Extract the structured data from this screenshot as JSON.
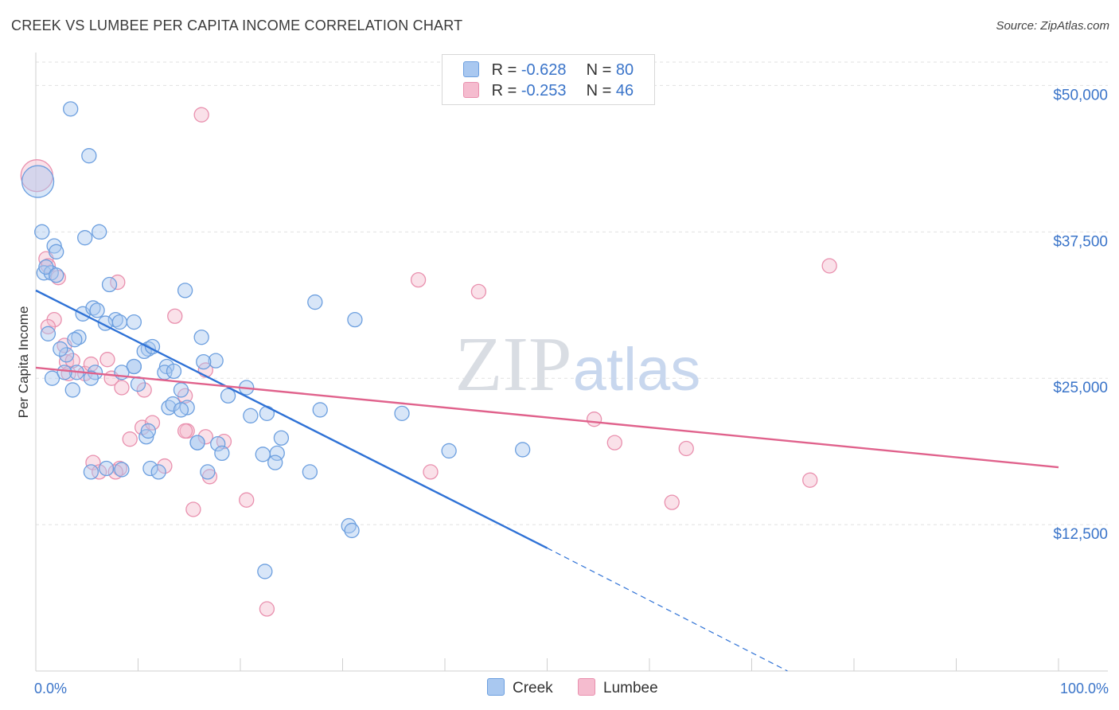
{
  "header": {
    "title": "CREEK VS LUMBEE PER CAPITA INCOME CORRELATION CHART",
    "source": "Source: ZipAtlas.com"
  },
  "legend": {
    "creek": {
      "r_label": "R = ",
      "r_value": "-0.628",
      "n_label": "N = ",
      "n_value": "80",
      "name": "Creek"
    },
    "lumbee": {
      "r_label": "R = ",
      "r_value": "-0.253",
      "n_label": "N = ",
      "n_value": "46",
      "name": "Lumbee"
    }
  },
  "colors": {
    "creek_fill": "#a9c8f0",
    "creek_stroke": "#6c9fdf",
    "creek_line": "#2f72d6",
    "lumbee_fill": "#f5bccf",
    "lumbee_stroke": "#e990ae",
    "lumbee_line": "#e0628c",
    "axis_label": "#3a74c9",
    "grid": "#e1e1e1"
  },
  "chart_data": {
    "type": "scatter",
    "title": "CREEK VS LUMBEE PER CAPITA INCOME CORRELATION CHART",
    "xlabel": "",
    "ylabel": "Per Capita Income",
    "xlim": [
      0,
      100
    ],
    "ylim": [
      0,
      52000
    ],
    "x_ticks_labels": [
      "0.0%",
      "100.0%"
    ],
    "y_ticks": [
      12500,
      25000,
      37500,
      50000
    ],
    "y_tick_labels": [
      "$12,500",
      "$25,000",
      "$37,500",
      "$50,000"
    ],
    "watermark": {
      "zip": "ZIP",
      "atlas": "atlas"
    },
    "series": [
      {
        "name": "Creek",
        "x": [
          0.2,
          0.6,
          3.4,
          1.8,
          5.2,
          6.2,
          4.8,
          2.0,
          0.8,
          1.5,
          1.0,
          2.0,
          7.2,
          14.6,
          27.3,
          31.2,
          4.6,
          5.6,
          7.8,
          8.2,
          6.8,
          9.6,
          16.2,
          6.0,
          4.2,
          3.0,
          3.8,
          11.0,
          12.8,
          10.6,
          9.6,
          9.6,
          8.4,
          5.8,
          4.0,
          1.6,
          2.8,
          3.6,
          5.4,
          10.0,
          12.6,
          17.6,
          13.0,
          14.2,
          14.8,
          22.6,
          27.8,
          21.0,
          20.6,
          18.8,
          15.8,
          13.4,
          15.8,
          10.8,
          11.0,
          14.2,
          17.8,
          23.6,
          24.0,
          23.4,
          22.2,
          30.6,
          22.4,
          5.4,
          6.9,
          16.8,
          8.4,
          11.2,
          12.0,
          26.8,
          35.8,
          40.4,
          47.6,
          16.4,
          18.2,
          30.9,
          2.4,
          1.2,
          11.4,
          13.5
        ],
        "y": [
          41800,
          37500,
          48000,
          36300,
          44000,
          37500,
          37000,
          35800,
          34000,
          34000,
          34500,
          33800,
          33000,
          32500,
          31500,
          30000,
          30500,
          31000,
          30000,
          29800,
          29700,
          29800,
          28500,
          30800,
          28500,
          27000,
          28300,
          27500,
          26000,
          27300,
          26000,
          26000,
          25500,
          25500,
          25500,
          25000,
          25500,
          24000,
          25000,
          24500,
          25500,
          26500,
          22500,
          24000,
          22500,
          22000,
          22300,
          21800,
          24200,
          23500,
          19500,
          22800,
          19500,
          20000,
          20500,
          22300,
          19400,
          18600,
          19900,
          17800,
          18500,
          12400,
          8500,
          17000,
          17300,
          17000,
          17200,
          17300,
          17000,
          17000,
          22000,
          18800,
          18900,
          26400,
          18600,
          12000,
          27500,
          28800,
          27700,
          25600
        ]
      },
      {
        "name": "Lumbee",
        "x": [
          0.1,
          16.2,
          1.0,
          2.2,
          1.2,
          1.8,
          8.0,
          13.6,
          14.6,
          16.6,
          14.8,
          7.0,
          1.2,
          2.8,
          3.0,
          3.6,
          3.2,
          4.8,
          5.4,
          7.4,
          8.4,
          10.6,
          10.4,
          9.2,
          12.6,
          8.2,
          17.0,
          20.6,
          18.4,
          16.6,
          11.4,
          14.6,
          5.6,
          6.2,
          7.8,
          15.4,
          22.6,
          37.4,
          38.6,
          43.3,
          54.6,
          56.6,
          62.2,
          63.6,
          75.7,
          77.6
        ],
        "y": [
          42300,
          47500,
          35200,
          33600,
          34600,
          30000,
          33200,
          30300,
          23500,
          25700,
          20500,
          26600,
          29400,
          27800,
          26400,
          26500,
          25400,
          25400,
          26200,
          25000,
          24200,
          24000,
          20800,
          19800,
          17500,
          17300,
          16600,
          14600,
          19600,
          20000,
          21200,
          20500,
          17800,
          17000,
          17000,
          13800,
          5300,
          33400,
          17000,
          32400,
          21500,
          19500,
          14400,
          19000,
          16300,
          34600
        ]
      }
    ],
    "trendlines": [
      {
        "series": "Creek",
        "x": [
          0,
          50
        ],
        "y": [
          32500,
          10500
        ],
        "dashed_extension": {
          "x": [
            50,
            73.5
          ],
          "y": [
            10500,
            0
          ]
        }
      },
      {
        "series": "Lumbee",
        "x": [
          0,
          100
        ],
        "y": [
          25900,
          17400
        ]
      }
    ]
  }
}
